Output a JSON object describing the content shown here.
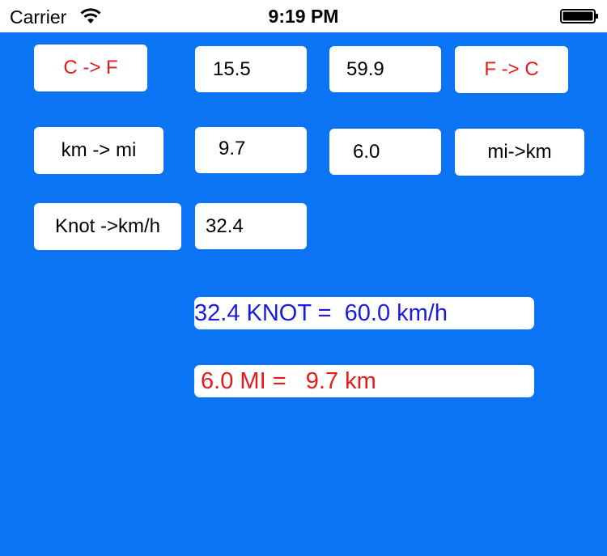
{
  "status_bar": {
    "carrier": "Carrier",
    "time": "9:19 PM",
    "wifi_icon": "wifi-icon",
    "battery_icon": "battery-icon"
  },
  "converters": {
    "temperature": {
      "c_to_f_label": "C -> F",
      "celsius_value": "15.5",
      "fahrenheit_value": "59.9",
      "f_to_c_label": "F -> C"
    },
    "distance": {
      "km_to_mi_label": "km -> mi",
      "km_value": "9.7",
      "mi_value": "6.0",
      "mi_to_km_label": "mi->km"
    },
    "speed": {
      "knot_to_kmh_label": "Knot ->km/h",
      "knot_value": "32.4"
    }
  },
  "results": {
    "knot_result": "32.4 KNOT =  60.0 km/h",
    "mile_result": " 6.0 MI =   9.7 km"
  },
  "colors": {
    "background": "#0a74f4",
    "accent_red": "#e61a1a",
    "accent_blue": "#1a1ae6"
  }
}
